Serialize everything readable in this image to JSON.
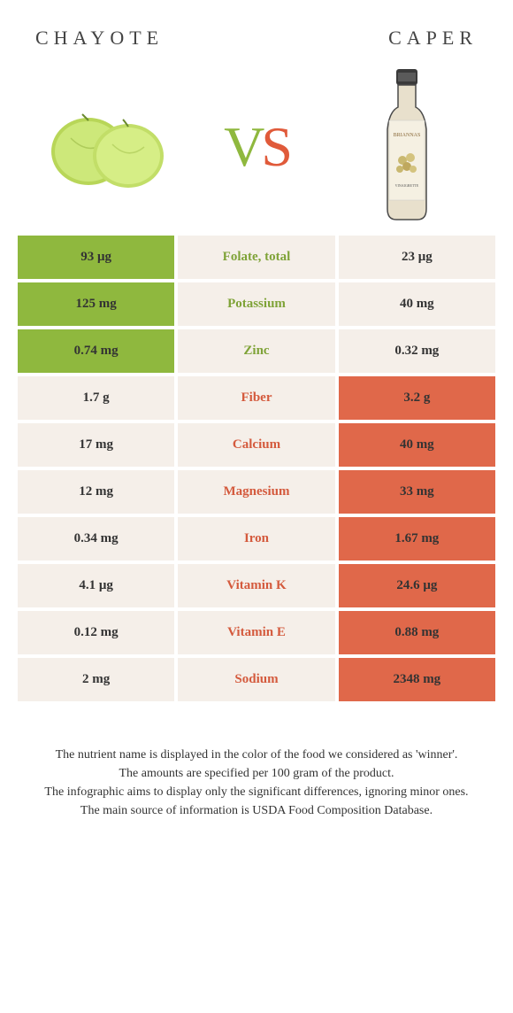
{
  "header": {
    "left_title": "CHAYOTE",
    "right_title": "CAPER",
    "vs_v": "V",
    "vs_s": "S"
  },
  "colors": {
    "green": "#8fb83e",
    "orange": "#e0684a",
    "cream": "#f5efe9",
    "green_text": "#7fa338",
    "orange_text": "#d45a3d"
  },
  "rows": [
    {
      "nutrient": "Folate, total",
      "left": "93 μg",
      "right": "23 μg",
      "winner": "left"
    },
    {
      "nutrient": "Potassium",
      "left": "125 mg",
      "right": "40 mg",
      "winner": "left"
    },
    {
      "nutrient": "Zinc",
      "left": "0.74 mg",
      "right": "0.32 mg",
      "winner": "left"
    },
    {
      "nutrient": "Fiber",
      "left": "1.7 g",
      "right": "3.2 g",
      "winner": "right"
    },
    {
      "nutrient": "Calcium",
      "left": "17 mg",
      "right": "40 mg",
      "winner": "right"
    },
    {
      "nutrient": "Magnesium",
      "left": "12 mg",
      "right": "33 mg",
      "winner": "right"
    },
    {
      "nutrient": "Iron",
      "left": "0.34 mg",
      "right": "1.67 mg",
      "winner": "right"
    },
    {
      "nutrient": "Vitamin K",
      "left": "4.1 μg",
      "right": "24.6 μg",
      "winner": "right"
    },
    {
      "nutrient": "Vitamin E",
      "left": "0.12 mg",
      "right": "0.88 mg",
      "winner": "right"
    },
    {
      "nutrient": "Sodium",
      "left": "2 mg",
      "right": "2348 mg",
      "winner": "right"
    }
  ],
  "footnotes": [
    "The nutrient name is displayed in the color of the food we considered as 'winner'.",
    "The amounts are specified per 100 gram of the product.",
    "The infographic aims to display only the significant differences, ignoring minor ones.",
    "The main source of information is USDA Food Composition Database."
  ]
}
